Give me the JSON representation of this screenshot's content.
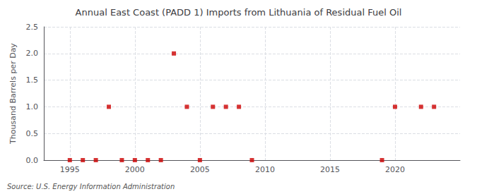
{
  "chart_data": {
    "type": "scatter",
    "title": "Annual East Coast (PADD 1) Imports from Lithuania of Residual Fuel Oil",
    "ylabel": "Thousand Barrels per Day",
    "annotation": "Source: U.S. Energy Information Administration",
    "x": [
      1995,
      1996,
      1997,
      1998,
      1999,
      2000,
      2001,
      2002,
      2003,
      2004,
      2005,
      2006,
      2007,
      2008,
      2009,
      2019,
      2020,
      2022,
      2023
    ],
    "values": [
      0.0,
      0.0,
      0.0,
      1.0,
      0.0,
      0.0,
      0.0,
      0.0,
      2.0,
      1.0,
      0.0,
      1.0,
      1.0,
      1.0,
      0.0,
      0.0,
      1.0,
      1.0,
      1.0
    ],
    "color": "#cc0000",
    "marker": "square",
    "xlim": [
      1993,
      2025
    ],
    "xticks": [
      1995,
      2000,
      2005,
      2010,
      2015,
      2020
    ],
    "ylim": [
      0,
      2.5
    ],
    "yticks": [
      {
        "value": 0,
        "label": "0.0"
      },
      0.5,
      {
        "value": 1,
        "label": "1.0"
      },
      1.5,
      {
        "value": 2,
        "label": "2.0"
      },
      2.5
    ],
    "grid": true
  }
}
